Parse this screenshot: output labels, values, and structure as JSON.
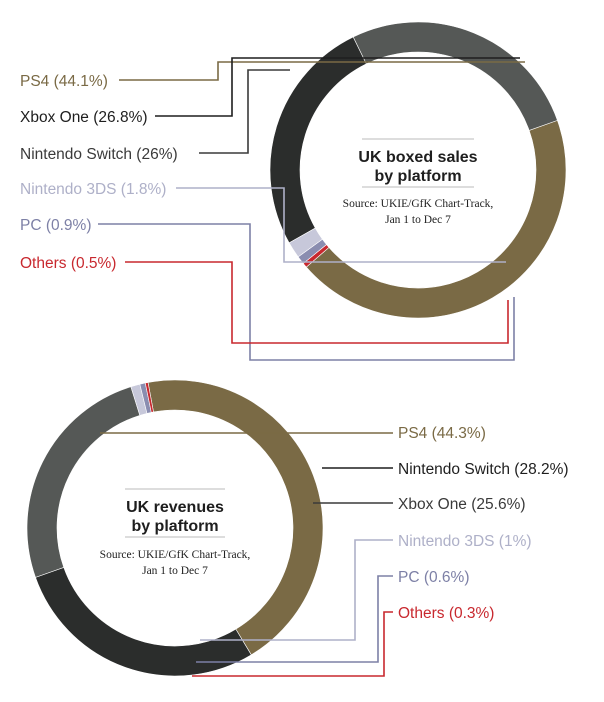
{
  "chart_data": [
    {
      "type": "pie",
      "title": [
        "UK boxed sales",
        "by platform"
      ],
      "source": [
        "Source: UKIE/GfK Chart-Track,",
        "Jan 1 to Dec 7"
      ],
      "slices": [
        {
          "name": "PS4",
          "value": 44.1,
          "label": "PS4 (44.1%)",
          "color": "#7a6a45",
          "label_color": "#7a6a45"
        },
        {
          "name": "Xbox One",
          "value": 26.8,
          "label": "Xbox One (26.8%)",
          "color": "#555856",
          "label_color": "#1e1e1e"
        },
        {
          "name": "Nintendo Switch",
          "value": 26.0,
          "label": "Nintendo Switch (26%)",
          "color": "#2b2d2c",
          "label_color": "#3a3a3a"
        },
        {
          "name": "Nintendo 3DS",
          "value": 1.8,
          "label": "Nintendo 3DS (1.8%)",
          "color": "#c7c8da",
          "label_color": "#aeb0c8"
        },
        {
          "name": "PC",
          "value": 0.9,
          "label": "PC (0.9%)",
          "color": "#8a8db0",
          "label_color": "#7d80a6"
        },
        {
          "name": "Others",
          "value": 0.5,
          "label": "Others (0.5%)",
          "color": "#c8282e",
          "label_color": "#c8282e"
        }
      ]
    },
    {
      "type": "pie",
      "title": [
        "UK revenues",
        "by plaftorm"
      ],
      "source": [
        "Source: UKIE/GfK Chart-Track,",
        "Jan 1 to Dec 7"
      ],
      "slices": [
        {
          "name": "PS4",
          "value": 44.3,
          "label": "PS4 (44.3%)",
          "color": "#7a6a45",
          "label_color": "#7a6a45"
        },
        {
          "name": "Nintendo Switch",
          "value": 28.2,
          "label": "Nintendo Switch (28.2%)",
          "color": "#2b2d2c",
          "label_color": "#1e1e1e"
        },
        {
          "name": "Xbox One",
          "value": 25.6,
          "label": "Xbox One (25.6%)",
          "color": "#555856",
          "label_color": "#3a3a3a"
        },
        {
          "name": "Nintendo 3DS",
          "value": 1.0,
          "label": "Nintendo 3DS (1%)",
          "color": "#c7c8da",
          "label_color": "#aeb0c8"
        },
        {
          "name": "PC",
          "value": 0.6,
          "label": "PC (0.6%)",
          "color": "#8a8db0",
          "label_color": "#7d80a6"
        },
        {
          "name": "Others",
          "value": 0.3,
          "label": "Others (0.3%)",
          "color": "#c8282e",
          "label_color": "#c8282e"
        }
      ]
    }
  ]
}
